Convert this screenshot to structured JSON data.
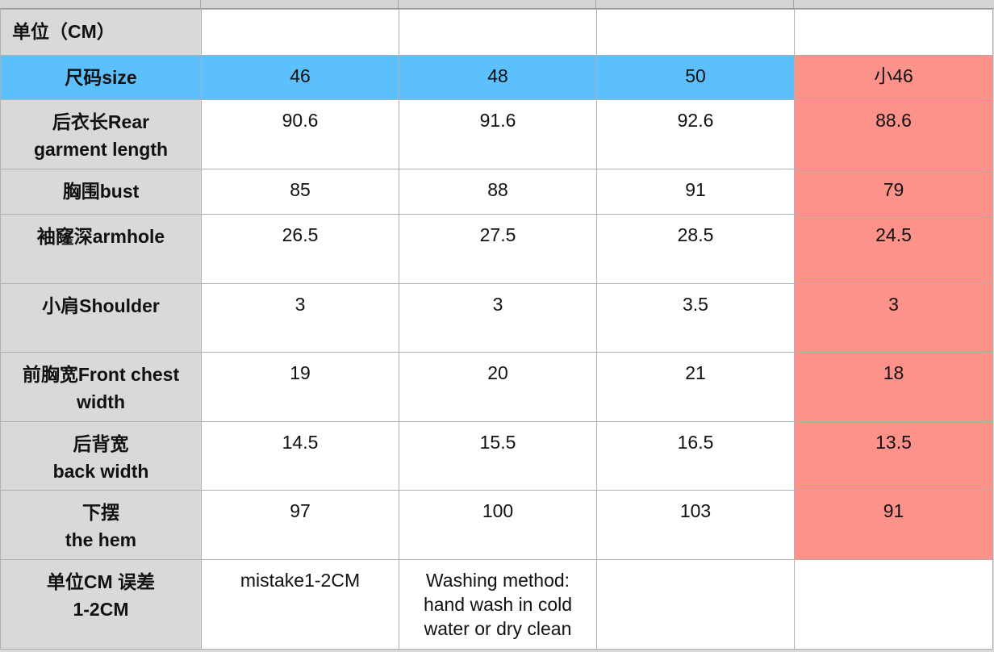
{
  "unit_label": "单位（CM）",
  "header": {
    "label": "尺码size",
    "sizes": [
      "46",
      "48",
      "50",
      "小46"
    ]
  },
  "rows": [
    {
      "label_line1": "后衣长Rear",
      "label_line2": "garment length",
      "values": [
        "90.6",
        "91.6",
        "92.6",
        "88.6"
      ]
    },
    {
      "label_line1": "胸围bust",
      "label_line2": "",
      "values": [
        "85",
        "88",
        "91",
        "79"
      ]
    },
    {
      "label_line1": "袖窿深armhole",
      "label_line2": "",
      "values": [
        "26.5",
        "27.5",
        "28.5",
        "24.5"
      ]
    },
    {
      "label_line1": "小肩Shoulder",
      "label_line2": "",
      "values": [
        "3",
        "3",
        "3.5",
        "3"
      ]
    },
    {
      "label_line1": "前胸宽Front chest",
      "label_line2": "width",
      "values": [
        "19",
        "20",
        "21",
        "18"
      ]
    },
    {
      "label_line1": "后背宽",
      "label_line2": "back width",
      "values": [
        "14.5",
        "15.5",
        "16.5",
        "13.5"
      ]
    },
    {
      "label_line1": "下摆",
      "label_line2": "the hem",
      "values": [
        "97",
        "100",
        "103",
        "91"
      ]
    }
  ],
  "footer": {
    "label_line1": "单位CM 误差",
    "label_line2": "1-2CM",
    "mistake": "mistake1-2CM",
    "washing_line1": "Washing method:",
    "washing_line2": "hand wash in cold",
    "washing_line3": "water or dry clean"
  },
  "colors": {
    "header_blue": "#5bc0fb",
    "highlight_pink": "#fd928a",
    "label_gray": "#d9d9d9"
  }
}
